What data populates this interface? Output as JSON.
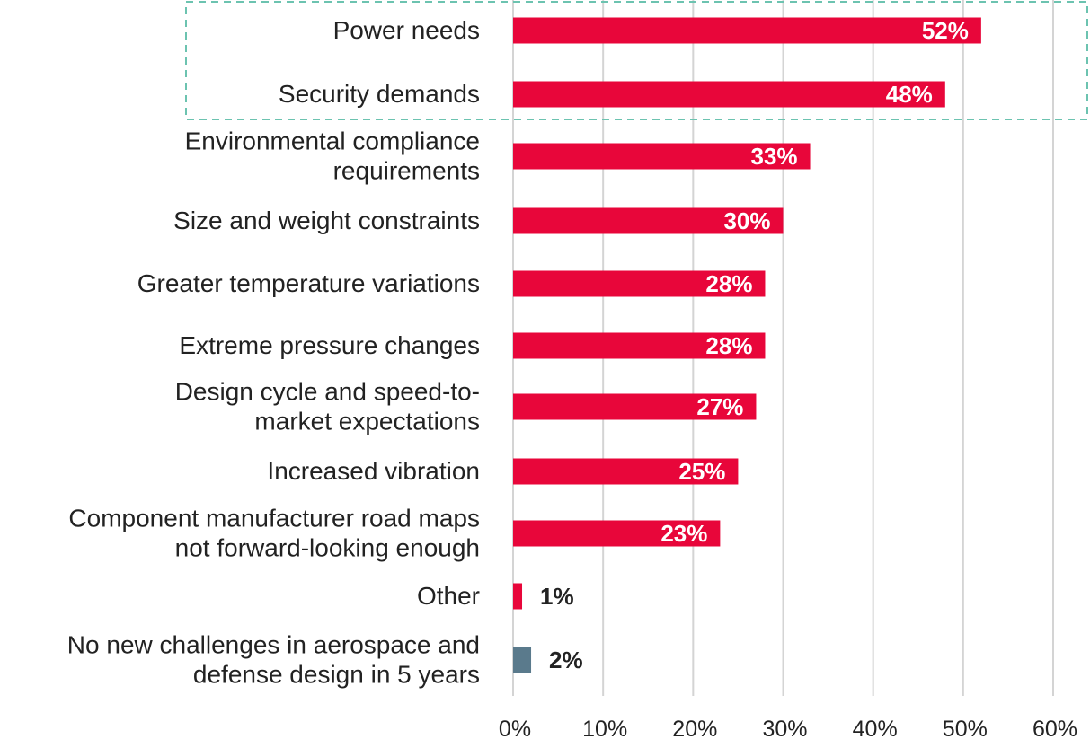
{
  "chart_data": {
    "type": "bar",
    "orientation": "horizontal",
    "categories": [
      [
        "Power needs"
      ],
      [
        "Security demands"
      ],
      [
        "Environmental compliance",
        "requirements"
      ],
      [
        "Size and weight constraints"
      ],
      [
        "Greater temperature variations"
      ],
      [
        "Extreme pressure changes"
      ],
      [
        "Design cycle and speed-to-",
        "market expectations"
      ],
      [
        "Increased vibration"
      ],
      [
        "Component manufacturer road maps",
        "not forward-looking enough"
      ],
      [
        "Other"
      ],
      [
        "No new challenges in aerospace and",
        "defense design in 5 years"
      ]
    ],
    "values": [
      52,
      48,
      33,
      30,
      28,
      28,
      27,
      25,
      23,
      1,
      2
    ],
    "value_labels": [
      "52%",
      "48%",
      "33%",
      "30%",
      "28%",
      "28%",
      "27%",
      "25%",
      "23%",
      "1%",
      "2%"
    ],
    "bar_colors": [
      "#e8063a",
      "#e8063a",
      "#e8063a",
      "#e8063a",
      "#e8063a",
      "#e8063a",
      "#e8063a",
      "#e8063a",
      "#e8063a",
      "#e8063a",
      "#5a7a8c"
    ],
    "x_ticks": [
      0,
      10,
      20,
      30,
      40,
      50,
      60
    ],
    "x_tick_labels": [
      "0%",
      "10%",
      "20%",
      "30%",
      "40%",
      "50%",
      "60%"
    ],
    "xlim": [
      0,
      60
    ],
    "grid": true,
    "highlight": {
      "categories": [
        "Power needs",
        "Security demands"
      ],
      "style": "dashed",
      "color": "#6cc3b0"
    }
  }
}
